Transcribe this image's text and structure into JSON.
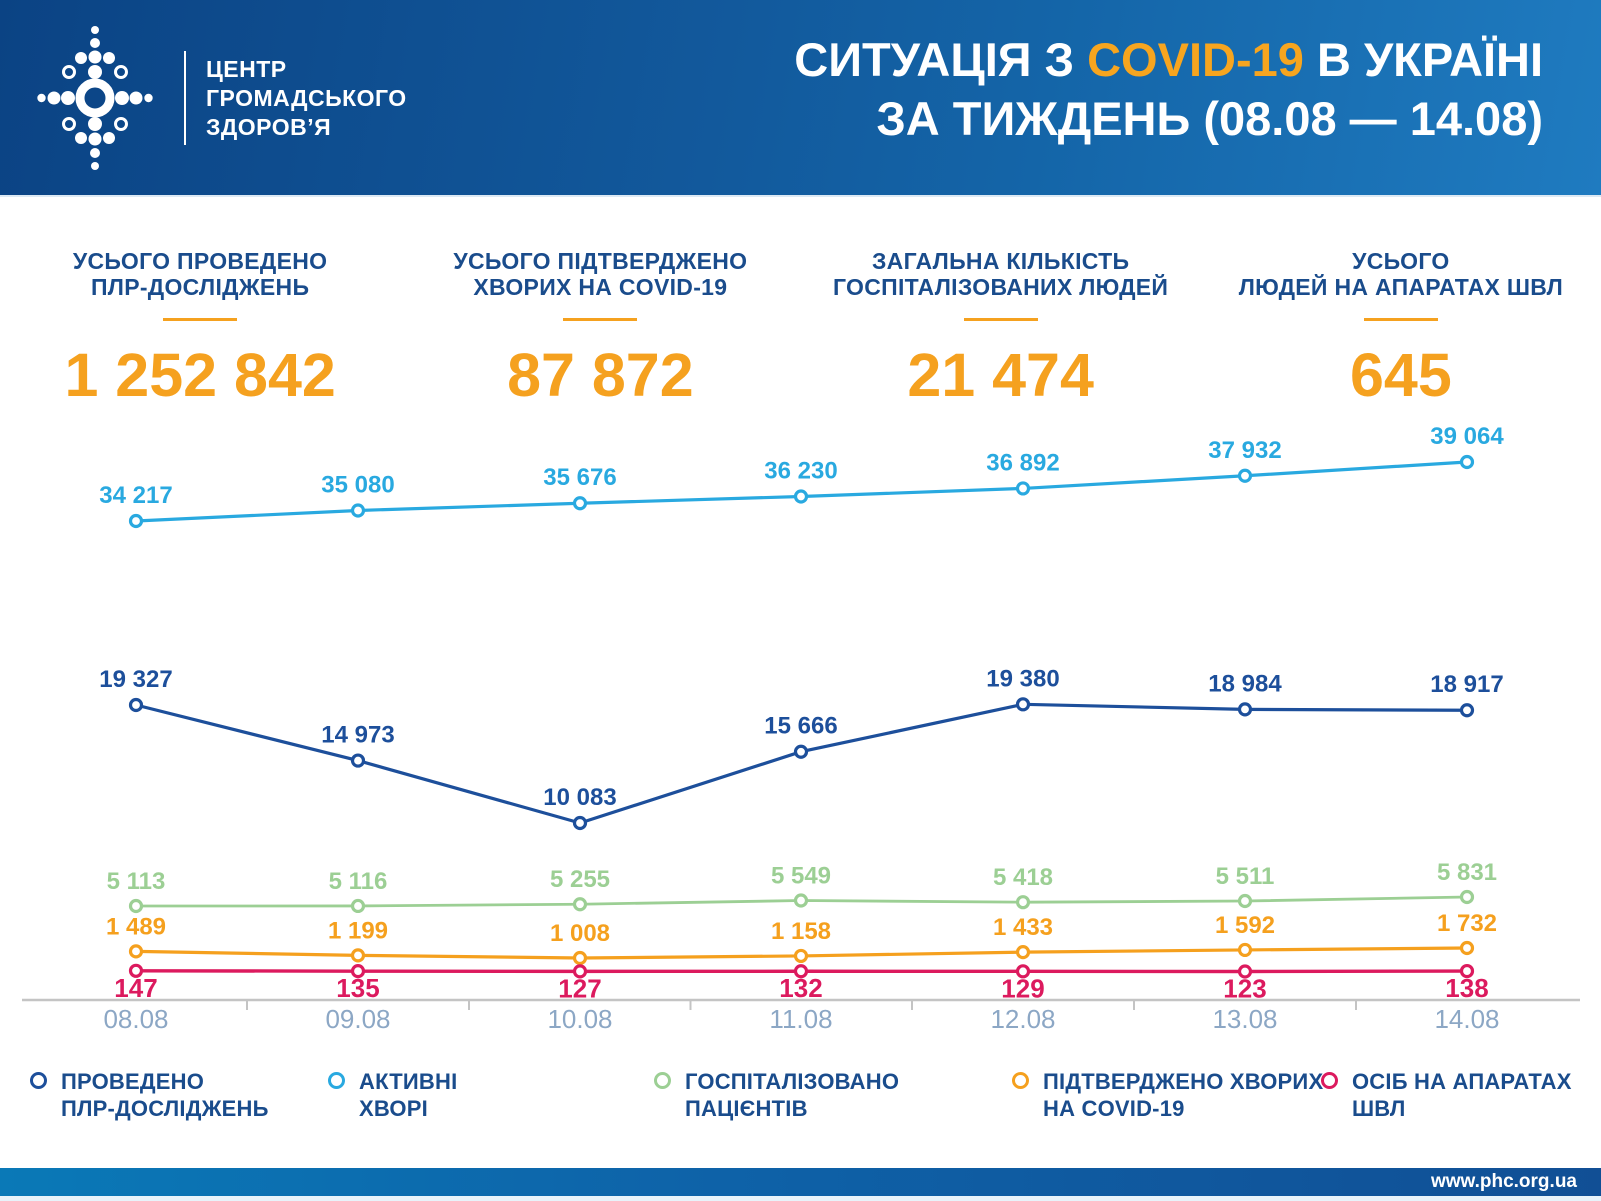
{
  "header": {
    "logo": {
      "line1": "ЦЕНТР",
      "line2": "ГРОМАДСЬКОГО",
      "line3": "ЗДОРОВ’Я"
    },
    "title_line1_pre": "СИТУАЦІЯ З ",
    "title_line1_highlight": "COVID-19",
    "title_line1_post": " В УКРАЇНІ",
    "title_line2": "ЗА ТИЖДЕНЬ (08.08 — 14.08)"
  },
  "stats": [
    {
      "label_line1": "УСЬОГО ПРОВЕДЕНО",
      "label_line2": "ПЛР-ДОСЛІДЖЕНЬ",
      "value": "1 252 842"
    },
    {
      "label_line1": "УСЬОГО ПІДТВЕРДЖЕНО",
      "label_line2": "ХВОРИХ НА COVID-19",
      "value": "87 872"
    },
    {
      "label_line1": "ЗАГАЛЬНА КІЛЬКІСТЬ",
      "label_line2": "ГОСПІТАЛІЗОВАНИХ ЛЮДЕЙ",
      "value": "21 474"
    },
    {
      "label_line1": "УСЬОГО",
      "label_line2": "ЛЮДЕЙ НА АПАРАТАХ ШВЛ",
      "value": "645"
    }
  ],
  "chart_data": {
    "type": "line",
    "x": [
      "08.08",
      "09.08",
      "10.08",
      "11.08",
      "12.08",
      "13.08",
      "14.08"
    ],
    "series": [
      {
        "key": "active",
        "name": "АКТИВНІ ХВОРІ",
        "color": "#29A9E0",
        "values": [
          34217,
          35080,
          35676,
          36230,
          36892,
          37932,
          39064
        ],
        "label_position": "above"
      },
      {
        "key": "pcr",
        "name": "ПРОВЕДЕНО ПЛР-ДОСЛІДЖЕНЬ",
        "color": "#1D4F9B",
        "values": [
          19327,
          14973,
          10083,
          15666,
          19380,
          18984,
          18917
        ],
        "label_position": "above"
      },
      {
        "key": "hospitalized",
        "name": "ГОСПІТАЛІЗОВАНО ПАЦІЄНТІВ",
        "color": "#9CCF94",
        "values": [
          5113,
          5116,
          5255,
          5549,
          5418,
          5511,
          5831
        ],
        "label_position": "above"
      },
      {
        "key": "confirmed",
        "name": "ПІДТВЕРДЖЕНО ХВОРИХ НА COVID-19",
        "color": "#F5A01E",
        "values": [
          1489,
          1199,
          1008,
          1158,
          1433,
          1592,
          1732
        ],
        "label_position": "above"
      },
      {
        "key": "ventilator",
        "name": "ОСІБ НА АПАРАТАХ ШВЛ",
        "color": "#DC1A5E",
        "values": [
          147,
          135,
          127,
          132,
          129,
          123,
          138
        ],
        "label_position": "below"
      }
    ],
    "title": "",
    "xlabel": "",
    "ylabel": "",
    "grid": false,
    "legend_position": "bottom",
    "marker": "open-circle",
    "axis_color": "#C4C4C4",
    "tick_label_color": "#8CA7C5"
  },
  "legend": [
    {
      "label_line1": "ПРОВЕДЕНО",
      "label_line2": "ПЛР-ДОСЛІДЖЕНЬ",
      "color": "#1D4F9B"
    },
    {
      "label_line1": "АКТИВНІ",
      "label_line2": "ХВОРІ",
      "color": "#29A9E0"
    },
    {
      "label_line1": "ГОСПІТАЛІЗОВАНО",
      "label_line2": "ПАЦІЄНТІВ",
      "color": "#9CCF94"
    },
    {
      "label_line1": "ПІДТВЕРДЖЕНО ХВОРИХ",
      "label_line2": "НА COVID-19",
      "color": "#F5A01E"
    },
    {
      "label_line1": "ОСІБ НА АПАРАТАХ",
      "label_line2": "ШВЛ",
      "color": "#DC1A5E"
    }
  ],
  "footer": {
    "url": "www.phc.org.ua"
  },
  "colors": {
    "accent_orange": "#F5A11F",
    "navy_text": "#1A4C8C",
    "header_gradient_start": "#0B4384",
    "header_gradient_end": "#1F7BC0",
    "footer_gradient_start": "#0A79B7",
    "footer_gradient_end": "#114F95"
  }
}
